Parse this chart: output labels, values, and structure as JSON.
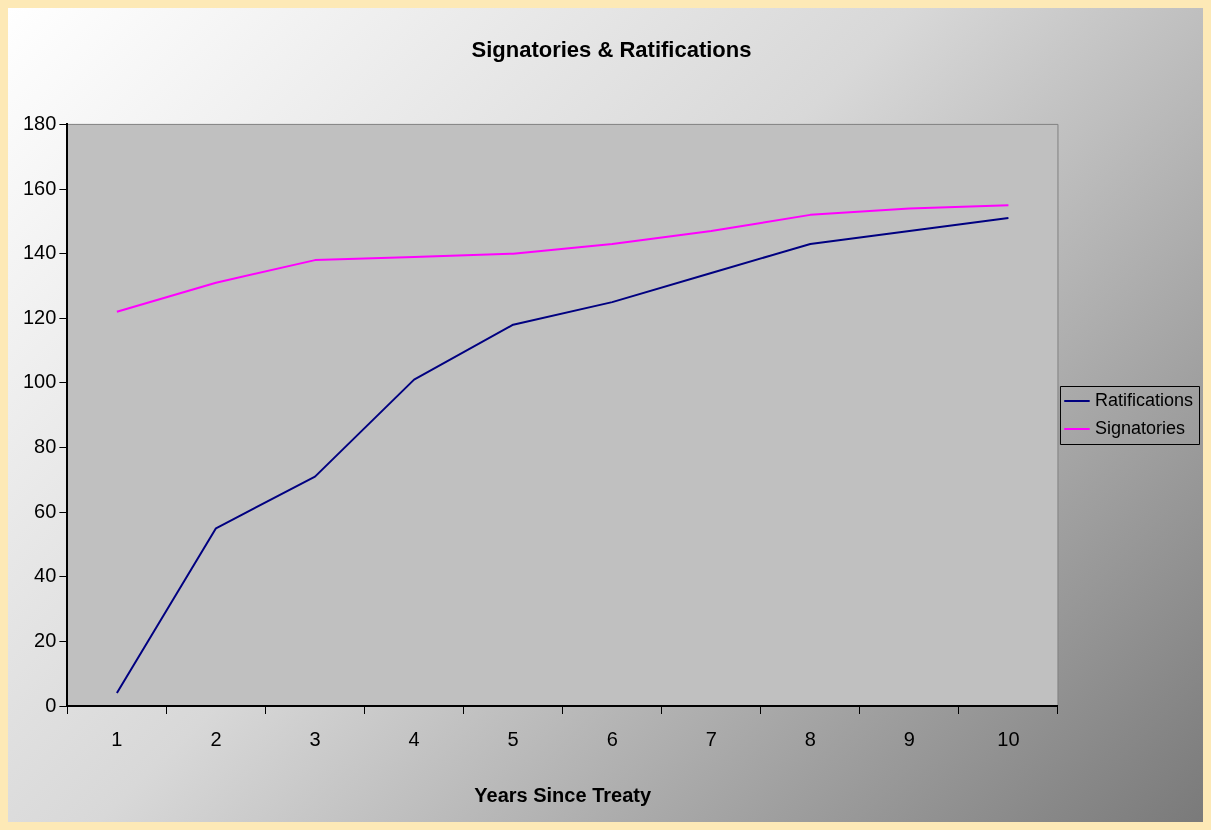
{
  "chart_data": {
    "type": "line",
    "title": "Signatories & Ratifications",
    "xlabel": "Years Since Treaty",
    "categories": [
      "1",
      "2",
      "3",
      "4",
      "5",
      "6",
      "7",
      "8",
      "9",
      "10"
    ],
    "series": [
      {
        "name": "Ratifications",
        "color": "#000080",
        "values": [
          4,
          55,
          71,
          101,
          118,
          125,
          134,
          143,
          147,
          151
        ]
      },
      {
        "name": "Signatories",
        "color": "#ff00ff",
        "values": [
          122,
          131,
          138,
          139,
          140,
          143,
          147,
          152,
          154,
          155
        ]
      }
    ],
    "ylim": [
      0,
      180
    ],
    "yticks": [
      0,
      20,
      40,
      60,
      80,
      100,
      120,
      140,
      160,
      180
    ],
    "grid": false,
    "legend": "right",
    "marker": "none",
    "line_style": "solid"
  }
}
